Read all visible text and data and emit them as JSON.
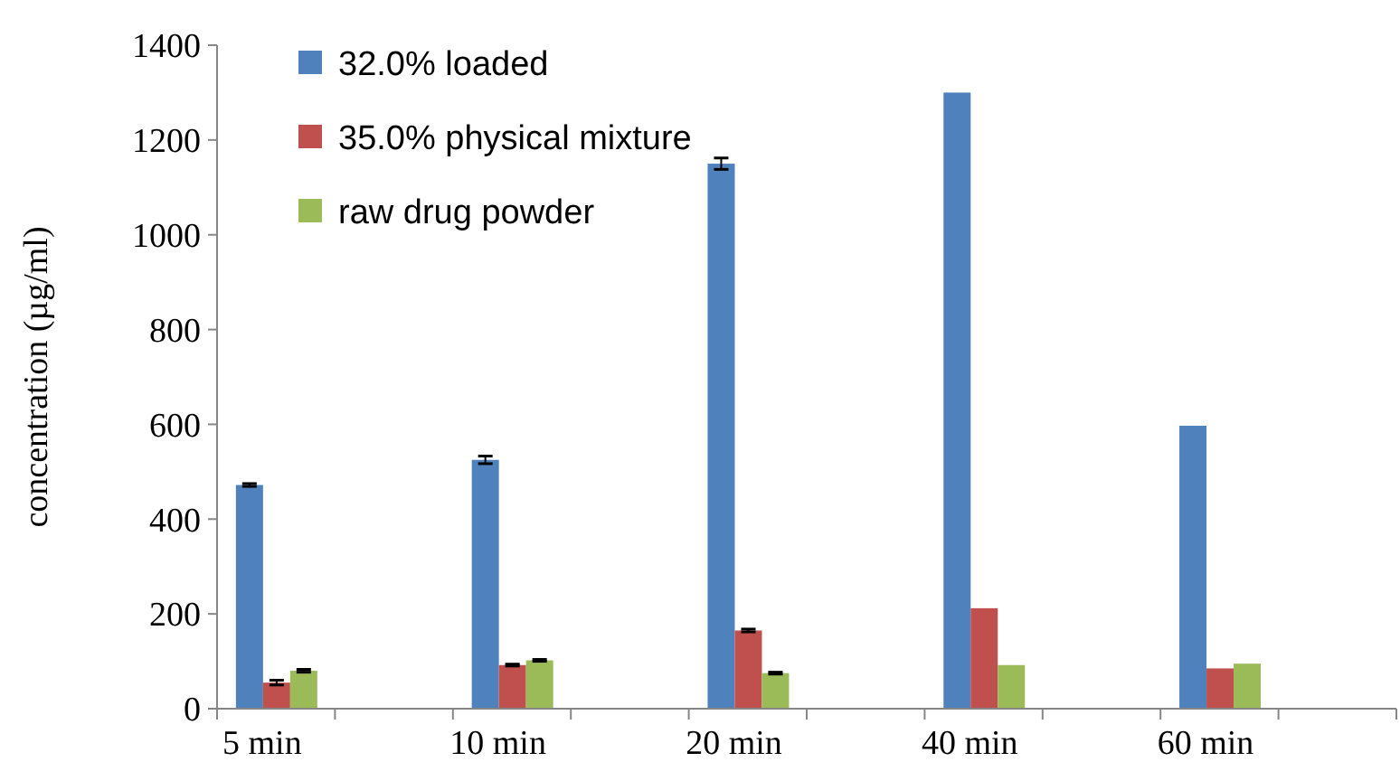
{
  "chart_data": {
    "type": "bar",
    "ylabel": "concentration (µg/ml)",
    "categories": [
      "5 min",
      "10 min",
      "20 min",
      "40 min",
      "60 min"
    ],
    "series": [
      {
        "name": "32.0% loaded",
        "color": "#4f81bd",
        "values": [
          472,
          525,
          1150,
          1300,
          597
        ],
        "errors": [
          3,
          8,
          12,
          null,
          null
        ]
      },
      {
        "name": "35.0% physical mixture",
        "color": "#c0504d",
        "values": [
          55,
          92,
          165,
          212,
          85
        ],
        "errors": [
          5,
          2,
          3,
          null,
          null
        ]
      },
      {
        "name": "raw drug powder",
        "color": "#9bbb59",
        "values": [
          80,
          102,
          75,
          92,
          95
        ],
        "errors": [
          3,
          2,
          2,
          null,
          null
        ]
      }
    ],
    "ylim": [
      0,
      1400
    ],
    "yticks": [
      0,
      200,
      400,
      600,
      800,
      1000,
      1200,
      1400
    ],
    "grid": false,
    "legend": "top left"
  }
}
